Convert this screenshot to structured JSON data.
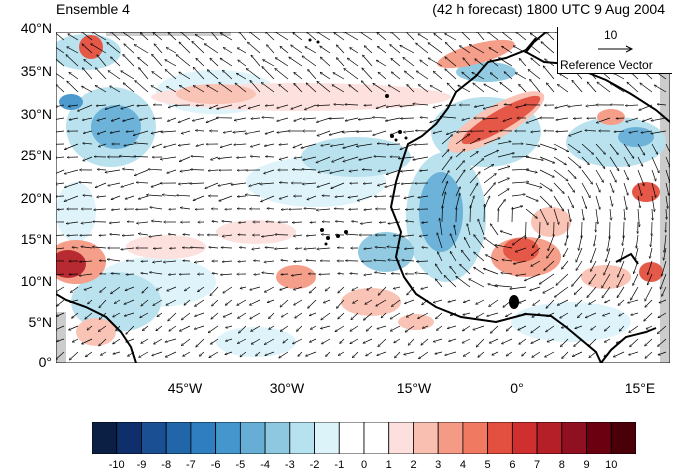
{
  "titles": {
    "left": "Ensemble 4",
    "right": "(42 h forecast) 1800 UTC 9 Aug 2004"
  },
  "axes": {
    "y_ticks": [
      "40°N",
      "35°N",
      "30°N",
      "25°N",
      "20°N",
      "15°N",
      "10°N",
      "5°N",
      "0°"
    ],
    "x_ticks": [
      "45°W",
      "30°W",
      "15°W",
      "0°",
      "15°E"
    ]
  },
  "reference_vector": {
    "value": "10",
    "label": "Reference Vector"
  },
  "colorbar": {
    "labels": [
      "-10",
      "-9",
      "-8",
      "-7",
      "-6",
      "-5",
      "-4",
      "-3",
      "-2",
      "-1",
      "0",
      "1",
      "2",
      "3",
      "4",
      "5",
      "6",
      "7",
      "8",
      "9",
      "10"
    ],
    "colors": [
      "#0b1f44",
      "#0e2f6b",
      "#1a4f94",
      "#2266aa",
      "#2f7fc0",
      "#4496cc",
      "#66aed6",
      "#8dc8e0",
      "#b6e1ee",
      "#ddf3fa",
      "#ffffff",
      "#ffffff",
      "#fde0dd",
      "#f9c0b2",
      "#f59a85",
      "#ef7a61",
      "#e4503f",
      "#d02f2f",
      "#b51f27",
      "#8f1020",
      "#6b0010",
      "#4a0008"
    ]
  },
  "colors": {
    "land_outline": "#000000",
    "missing": "#cccccc"
  }
}
